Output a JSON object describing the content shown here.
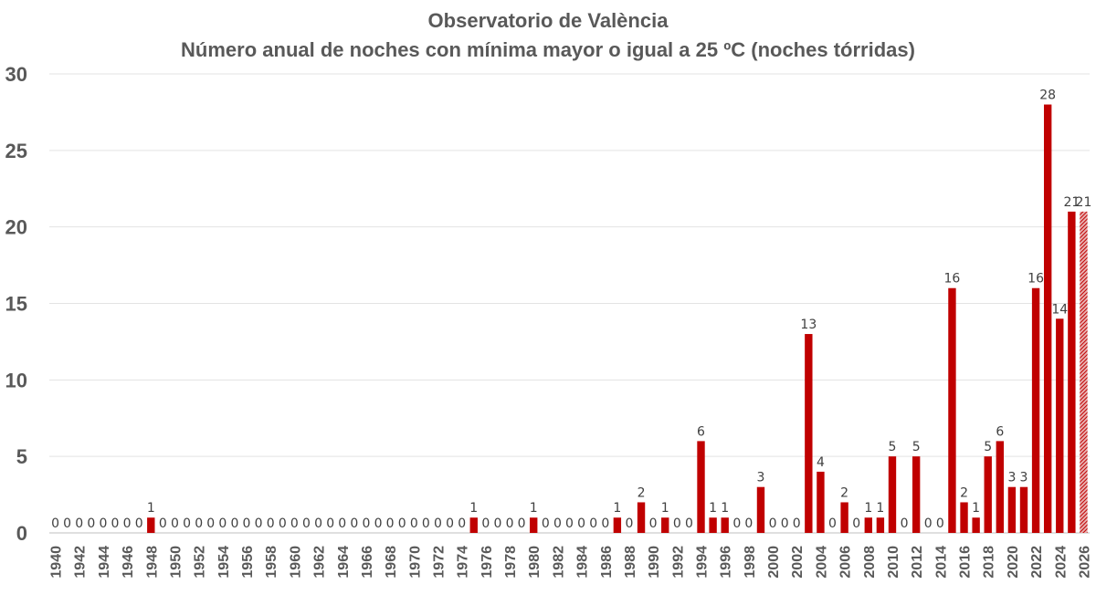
{
  "chart_data": {
    "type": "bar",
    "title": "Observatorio de València",
    "subtitle": "Número anual de noches con mínima mayor o igual a 25 ºC (noches tórridas)",
    "xlabel": "",
    "ylabel": "",
    "ylim": [
      0,
      30
    ],
    "yticks": [
      0,
      5,
      10,
      15,
      20,
      25,
      30
    ],
    "grid": true,
    "legend": "none",
    "bar_color": "#c00000",
    "x_tick_labels": [
      "1940",
      "1942",
      "1944",
      "1946",
      "1948",
      "1950",
      "1952",
      "1954",
      "1956",
      "1958",
      "1960",
      "1962",
      "1964",
      "1966",
      "1968",
      "1970",
      "1972",
      "1974",
      "1976",
      "1978",
      "1980",
      "1982",
      "1984",
      "1986",
      "1988",
      "1990",
      "1992",
      "1994",
      "1996",
      "1998",
      "2000",
      "2002",
      "2004",
      "2006",
      "2008",
      "2010",
      "2012",
      "2014",
      "2016",
      "2018",
      "2020",
      "2022",
      "2024",
      "2026"
    ],
    "series": [
      {
        "years": [
          1940,
          1941,
          1942,
          1943,
          1944,
          1945,
          1946,
          1947,
          1948,
          1949,
          1950,
          1951,
          1952,
          1953,
          1954,
          1955,
          1956,
          1957,
          1958,
          1959,
          1960,
          1961,
          1962,
          1963,
          1964,
          1965,
          1966,
          1967,
          1968,
          1969,
          1970,
          1971,
          1972,
          1973,
          1974,
          1975,
          1976,
          1977,
          1978,
          1979,
          1980,
          1981,
          1982,
          1983,
          1984,
          1985,
          1986,
          1987,
          1988,
          1989,
          1990,
          1991,
          1992,
          1993,
          1994,
          1995,
          1996,
          1997,
          1998,
          1999,
          2000,
          2001,
          2002,
          2003,
          2004,
          2005,
          2006,
          2007,
          2008,
          2009,
          2010,
          2011,
          2012,
          2013,
          2014,
          2015,
          2016,
          2017,
          2018,
          2019,
          2020,
          2021,
          2022,
          2023,
          2024,
          2025,
          2026
        ],
        "values": [
          0,
          0,
          0,
          0,
          0,
          0,
          0,
          0,
          1,
          0,
          0,
          0,
          0,
          0,
          0,
          0,
          0,
          0,
          0,
          0,
          0,
          0,
          0,
          0,
          0,
          0,
          0,
          0,
          0,
          0,
          0,
          0,
          0,
          0,
          0,
          1,
          0,
          0,
          0,
          0,
          1,
          0,
          0,
          0,
          0,
          0,
          0,
          1,
          0,
          2,
          0,
          1,
          0,
          0,
          6,
          1,
          1,
          0,
          0,
          3,
          0,
          0,
          0,
          13,
          4,
          0,
          2,
          0,
          1,
          1,
          5,
          0,
          5,
          0,
          0,
          16,
          2,
          1,
          5,
          6,
          3,
          3,
          16,
          28,
          14,
          21,
          21
        ],
        "labels": [
          "0",
          "0",
          "0",
          "0",
          "0",
          "0",
          "0",
          "0",
          "1",
          "0",
          "0",
          "0",
          "0",
          "0",
          "0",
          "0",
          "0",
          "0",
          "0",
          "0",
          "0",
          "0",
          "0",
          "0",
          "0",
          "0",
          "0",
          "0",
          "0",
          "0",
          "0",
          "0",
          "0",
          "0",
          "0",
          "1",
          "0",
          "0",
          "0",
          "0",
          "1",
          "0",
          "0",
          "0",
          "0",
          "0",
          "0",
          "1",
          "0",
          "2",
          "0",
          "1",
          "0",
          "0",
          "6",
          "1",
          "1",
          "0",
          "0",
          "3",
          "0",
          "0",
          "0",
          "13",
          "4",
          "0",
          "2",
          "0",
          "1",
          "1",
          "5",
          "0",
          "5",
          "0",
          "0",
          "16",
          "2",
          "1",
          "5",
          "6",
          "3",
          "3",
          "16",
          "28",
          "14",
          "21",
          "21"
        ],
        "hatched_years": [
          2026
        ]
      }
    ]
  }
}
